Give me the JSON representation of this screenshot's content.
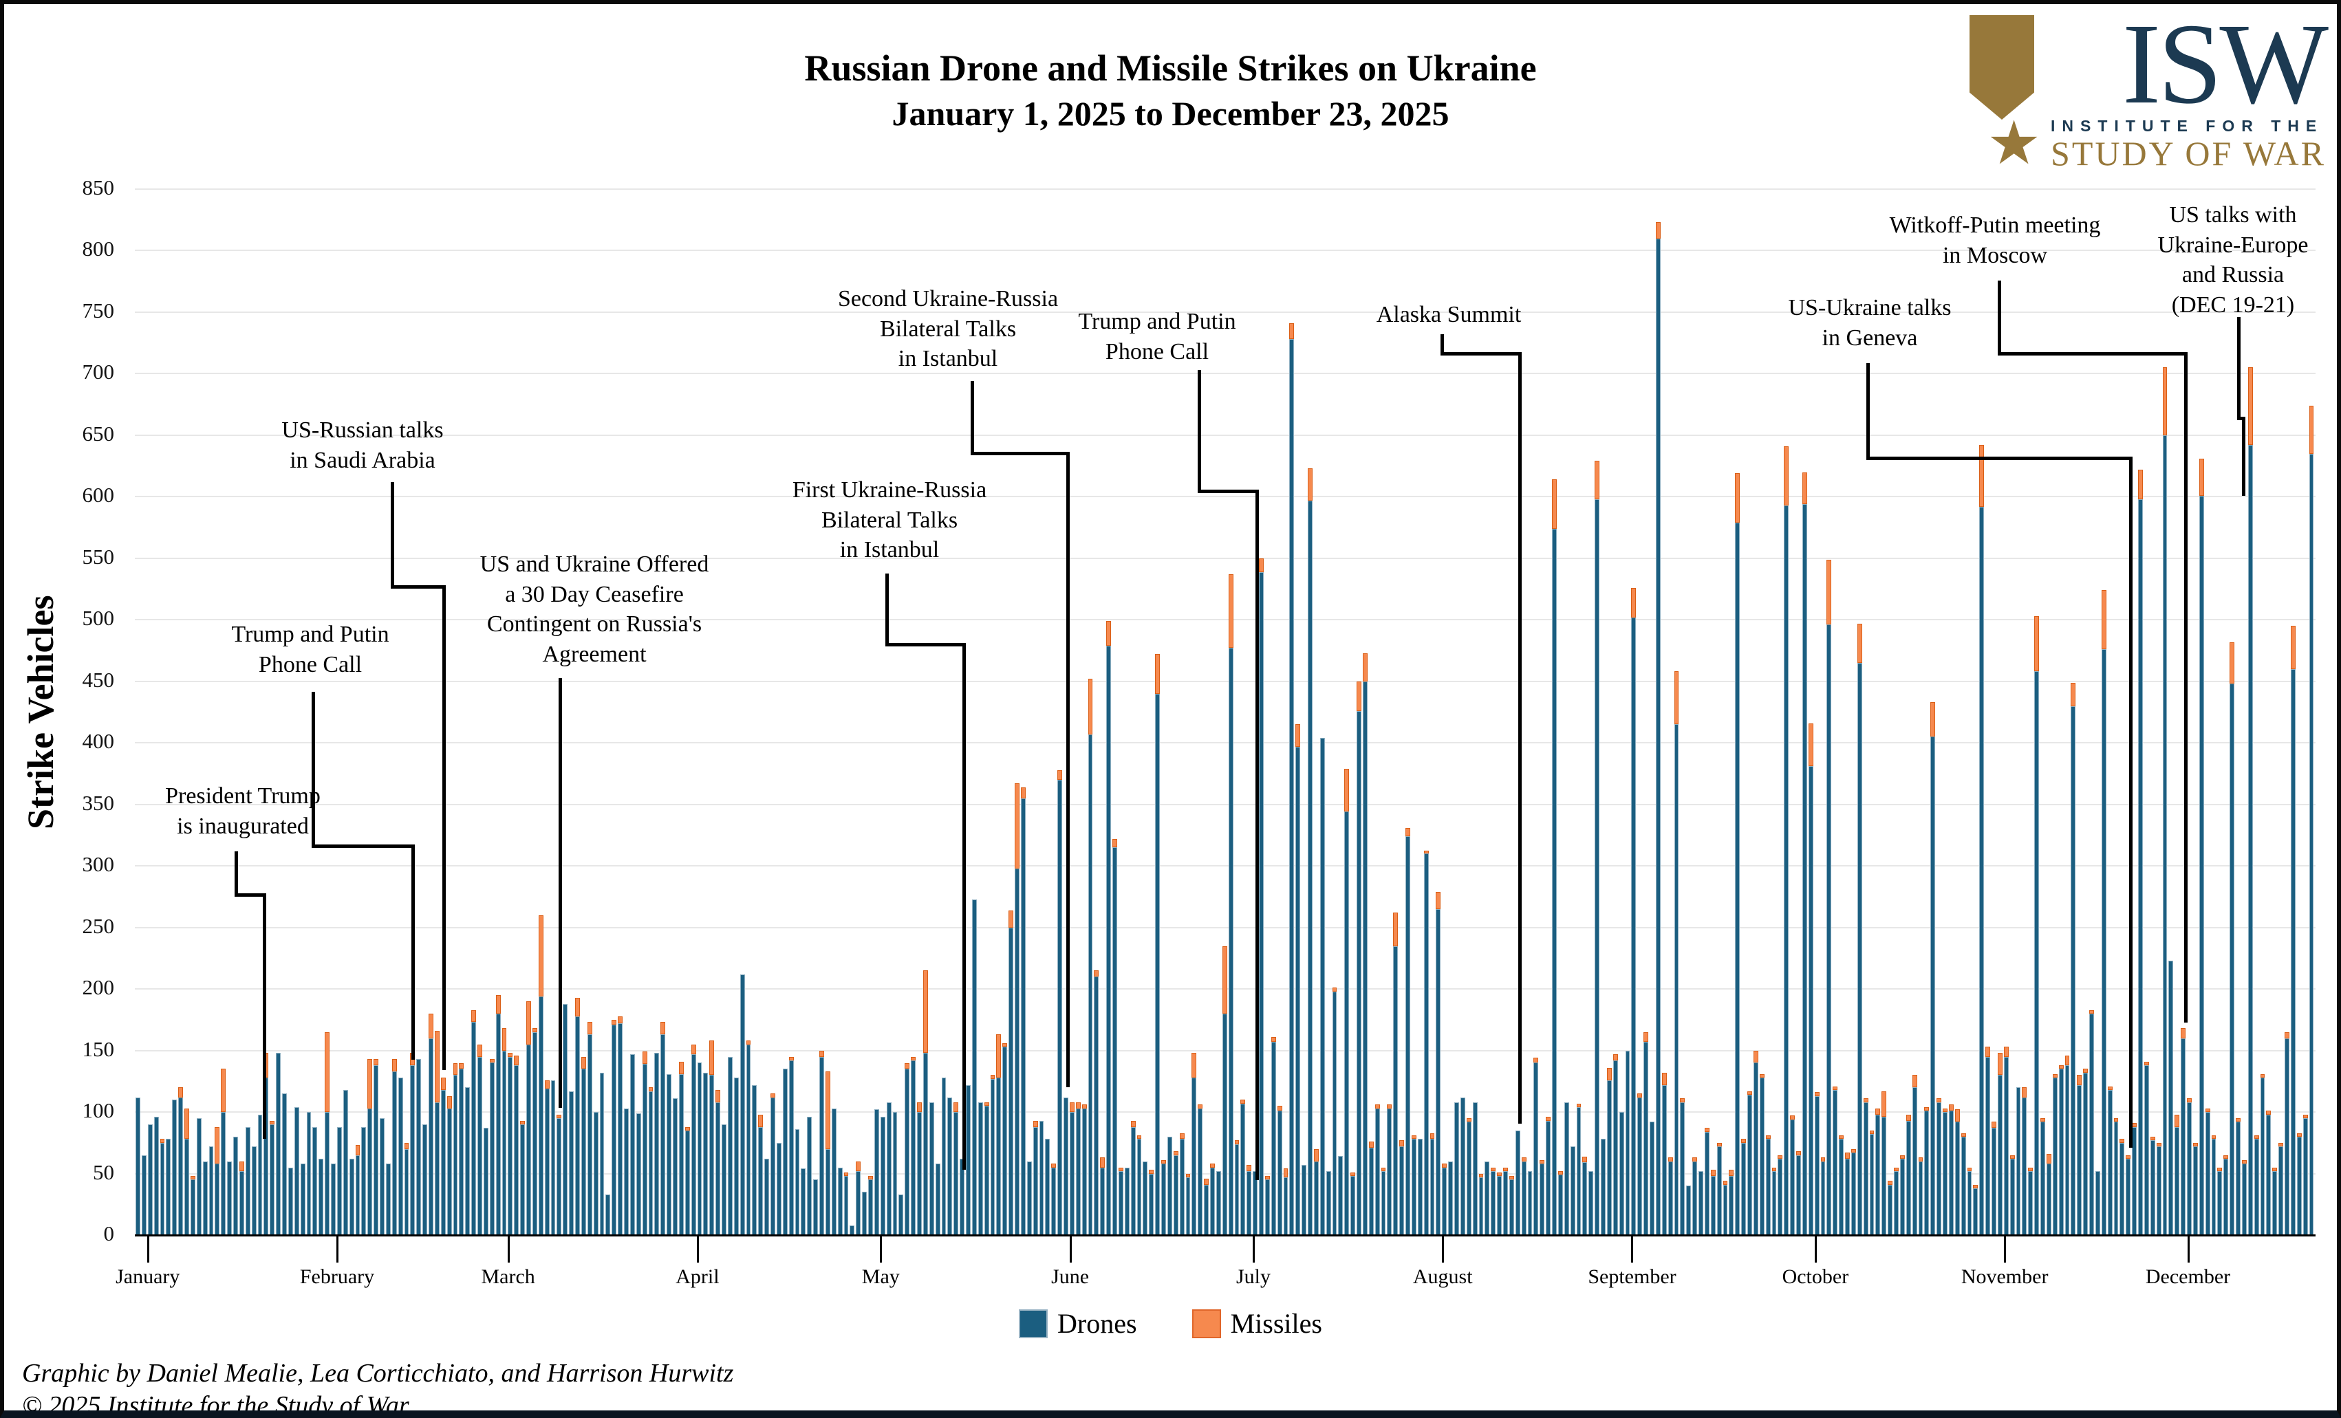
{
  "header": {
    "title": "Russian Drone and Missile Strikes on Ukraine",
    "subtitle": "January 1, 2025 to December 23, 2025"
  },
  "logo": {
    "acronym": "ISW",
    "line1": "INSTITUTE FOR THE",
    "line2": "STUDY OF WAR",
    "star": "★",
    "navy": "#1c3a52",
    "gold": "#97783a"
  },
  "footer": {
    "credit": "Graphic by Daniel Mealie, Lea Corticchiato, and Harrison Hurwitz",
    "copyright": "© 2025 Institute for the Study of War"
  },
  "annotations": {
    "inaugurated": {
      "lines": [
        "President Trump",
        "is inaugurated"
      ]
    },
    "putin_call_feb": {
      "lines": [
        "Trump and Putin",
        "Phone Call"
      ]
    },
    "saudi_talks": {
      "lines": [
        "US-Russian talks",
        "in Saudi Arabia"
      ]
    },
    "ceasefire": {
      "lines": [
        "US and Ukraine Offered",
        "a 30 Day Ceasefire",
        "Contingent on Russia's",
        "Agreement"
      ]
    },
    "first_istanbul": {
      "lines": [
        "First Ukraine-Russia",
        "Bilateral Talks",
        "in Istanbul"
      ]
    },
    "second_istanbul": {
      "lines": [
        "Second Ukraine-Russia",
        "Bilateral Talks",
        "in Istanbul"
      ]
    },
    "putin_call_jul": {
      "lines": [
        "Trump and Putin",
        "Phone Call"
      ]
    },
    "alaska": {
      "lines": [
        "Alaska Summit"
      ]
    },
    "geneva": {
      "lines": [
        "US-Ukraine talks",
        "in Geneva"
      ]
    },
    "witkoff": {
      "lines": [
        "Witkoff-Putin meeting",
        "in Moscow"
      ]
    },
    "dec_talks": {
      "lines": [
        "US talks with",
        "Ukraine-Europe",
        "and Russia",
        "(DEC 19-21)"
      ]
    }
  },
  "chart_data": {
    "type": "bar",
    "stacked": true,
    "title": "Russian Drone and Missile Strikes on Ukraine",
    "subtitle": "January 1, 2025 to December 23, 2025",
    "xlabel": "",
    "ylabel": "Strike Vehicles",
    "ylim": [
      0,
      850
    ],
    "ytick_step": 50,
    "grid": "horizontal",
    "legend_position": "bottom-center",
    "legend": [
      "Drones",
      "Missiles"
    ],
    "series_colors": {
      "drones": "#1b5e80",
      "missiles": "#f6894e"
    },
    "months": [
      {
        "name": "January",
        "drones": [
          112,
          65,
          90,
          96,
          75,
          78,
          110,
          112,
          78,
          45,
          95,
          60,
          72,
          58,
          100,
          60,
          80,
          52,
          88,
          72,
          98,
          128,
          90,
          148,
          115,
          55,
          104,
          58,
          100,
          88,
          62
        ],
        "missiles": [
          0,
          0,
          0,
          0,
          3,
          0,
          0,
          8,
          25,
          3,
          0,
          0,
          0,
          30,
          35,
          0,
          0,
          8,
          0,
          0,
          0,
          20,
          3,
          0,
          0,
          0,
          0,
          0,
          0,
          0,
          0
        ]
      },
      {
        "name": "February",
        "drones": [
          100,
          58,
          88,
          118,
          62,
          65,
          88,
          103,
          138,
          95,
          58,
          133,
          128,
          70,
          138,
          143,
          90,
          160,
          108,
          118,
          103,
          130,
          135,
          120,
          173,
          145,
          87,
          140
        ],
        "missiles": [
          65,
          0,
          0,
          0,
          0,
          8,
          0,
          40,
          5,
          0,
          0,
          10,
          0,
          5,
          10,
          0,
          0,
          20,
          58,
          10,
          10,
          10,
          5,
          0,
          10,
          10,
          0,
          3
        ]
      },
      {
        "name": "March",
        "drones": [
          180,
          150,
          145,
          138,
          90,
          155,
          165,
          194,
          119,
          126,
          95,
          188,
          117,
          178,
          135,
          163,
          100,
          132,
          33,
          171,
          172,
          103,
          147,
          99,
          139,
          117,
          148,
          163,
          131,
          111,
          131
        ],
        "missiles": [
          15,
          18,
          3,
          8,
          3,
          35,
          3,
          66,
          7,
          0,
          3,
          0,
          0,
          15,
          10,
          10,
          0,
          0,
          0,
          4,
          6,
          0,
          0,
          0,
          10,
          3,
          0,
          10,
          0,
          0,
          10
        ]
      },
      {
        "name": "April",
        "drones": [
          85,
          147,
          140,
          132,
          130,
          108,
          90,
          145,
          128,
          212,
          155,
          122,
          88,
          62,
          112,
          75,
          135,
          142,
          86,
          54,
          96,
          45,
          145,
          70,
          103,
          55,
          48,
          8,
          52,
          35
        ],
        "missiles": [
          3,
          8,
          0,
          0,
          28,
          10,
          0,
          0,
          0,
          0,
          3,
          0,
          10,
          0,
          3,
          0,
          0,
          3,
          0,
          0,
          0,
          0,
          5,
          63,
          0,
          0,
          3,
          0,
          8,
          0
        ]
      },
      {
        "name": "May",
        "drones": [
          45,
          102,
          96,
          108,
          100,
          33,
          135,
          142,
          100,
          148,
          108,
          58,
          128,
          112,
          100,
          62,
          122,
          273,
          108,
          105,
          127,
          128,
          153,
          250,
          298,
          355,
          60,
          88,
          93,
          78,
          55
        ],
        "missiles": [
          3,
          0,
          0,
          0,
          0,
          0,
          5,
          3,
          8,
          67,
          0,
          0,
          0,
          0,
          8,
          0,
          0,
          0,
          0,
          3,
          3,
          35,
          3,
          14,
          69,
          9,
          0,
          5,
          0,
          0,
          3
        ]
      },
      {
        "name": "June",
        "drones": [
          370,
          112,
          100,
          103,
          103,
          407,
          210,
          55,
          479,
          315,
          52,
          55,
          88,
          78,
          60,
          50,
          440,
          58,
          80,
          65,
          78,
          47,
          128,
          103,
          41,
          55,
          52,
          180,
          477,
          74
        ],
        "missiles": [
          8,
          0,
          8,
          5,
          3,
          45,
          5,
          8,
          20,
          7,
          3,
          0,
          5,
          3,
          0,
          3,
          32,
          3,
          0,
          3,
          5,
          3,
          20,
          3,
          5,
          3,
          0,
          55,
          60,
          3
        ]
      },
      {
        "name": "July",
        "drones": [
          107,
          52,
          52,
          539,
          45,
          157,
          101,
          47,
          728,
          397,
          57,
          597,
          60,
          404,
          52,
          198,
          64,
          344,
          48,
          426,
          450,
          71,
          103,
          52,
          103,
          235,
          72,
          324,
          78,
          78,
          310
        ],
        "missiles": [
          3,
          5,
          0,
          11,
          3,
          4,
          4,
          7,
          13,
          18,
          0,
          26,
          10,
          0,
          0,
          3,
          0,
          35,
          3,
          24,
          23,
          5,
          3,
          3,
          3,
          27,
          5,
          7,
          3,
          0,
          1
        ]
      },
      {
        "name": "August",
        "drones": [
          78,
          265,
          55,
          60,
          108,
          112,
          92,
          108,
          47,
          60,
          52,
          48,
          52,
          45,
          85,
          60,
          52,
          140,
          58,
          93,
          574,
          49,
          108,
          72,
          104,
          59,
          52,
          598,
          78,
          126,
          142
        ],
        "missiles": [
          5,
          14,
          3,
          0,
          0,
          0,
          3,
          0,
          3,
          0,
          3,
          3,
          3,
          3,
          0,
          3,
          0,
          4,
          3,
          3,
          40,
          3,
          0,
          0,
          3,
          5,
          0,
          31,
          0,
          10,
          5
        ]
      },
      {
        "name": "September",
        "drones": [
          100,
          150,
          502,
          112,
          157,
          92,
          810,
          122,
          60,
          415,
          108,
          40,
          60,
          52,
          84,
          48,
          72,
          41,
          48,
          579,
          75,
          114,
          140,
          128,
          78,
          52,
          62,
          593,
          94,
          65
        ],
        "missiles": [
          0,
          0,
          24,
          3,
          8,
          0,
          13,
          10,
          3,
          43,
          3,
          0,
          3,
          0,
          3,
          5,
          3,
          3,
          5,
          40,
          3,
          3,
          10,
          3,
          3,
          3,
          3,
          48,
          3,
          3
        ]
      },
      {
        "name": "October",
        "drones": [
          594,
          381,
          113,
          60,
          496,
          118,
          78,
          62,
          67,
          465,
          108,
          82,
          98,
          96,
          41,
          52,
          62,
          93,
          120,
          60,
          101,
          405,
          108,
          100,
          101,
          92,
          80,
          52,
          38,
          592,
          145
        ],
        "missiles": [
          26,
          35,
          3,
          3,
          53,
          3,
          3,
          5,
          3,
          32,
          3,
          3,
          5,
          21,
          3,
          3,
          3,
          5,
          10,
          3,
          3,
          28,
          3,
          3,
          5,
          10,
          3,
          3,
          3,
          50,
          8
        ]
      },
      {
        "name": "November",
        "drones": [
          87,
          130,
          145,
          62,
          120,
          112,
          52,
          458,
          92,
          58,
          128,
          135,
          138,
          430,
          122,
          132,
          180,
          52,
          476,
          118,
          92,
          75,
          62,
          88,
          598,
          138,
          77,
          72,
          650,
          223
        ],
        "missiles": [
          5,
          18,
          8,
          3,
          0,
          8,
          3,
          45,
          3,
          8,
          3,
          3,
          8,
          19,
          8,
          3,
          3,
          0,
          48,
          3,
          3,
          3,
          3,
          3,
          24,
          3,
          3,
          3,
          55,
          0
        ]
      },
      {
        "name": "December",
        "drones": [
          88,
          160,
          108,
          72,
          601,
          100,
          78,
          52,
          62,
          448,
          92,
          58,
          642,
          78,
          128,
          98,
          52,
          72,
          160,
          460,
          80,
          95,
          635
        ],
        "missiles": [
          10,
          8,
          3,
          3,
          30,
          3,
          3,
          3,
          3,
          34,
          3,
          3,
          63,
          3,
          3,
          3,
          3,
          3,
          5,
          35,
          3,
          3,
          39
        ]
      }
    ]
  }
}
